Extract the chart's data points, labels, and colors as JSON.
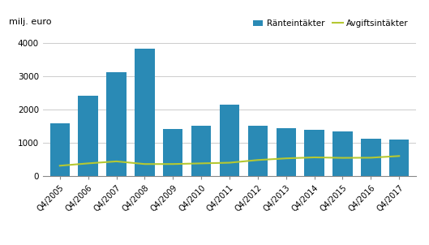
{
  "categories": [
    "Q4/2005",
    "Q4/2006",
    "Q4/2007",
    "Q4/2008",
    "Q4/2009",
    "Q4/2010",
    "Q4/2011",
    "Q4/2012",
    "Q4/2013",
    "Q4/2014",
    "Q4/2015",
    "Q4/2016",
    "Q4/2017"
  ],
  "ranteintakter": [
    1600,
    2420,
    3130,
    3830,
    1430,
    1510,
    2150,
    1520,
    1440,
    1390,
    1350,
    1120,
    1110
  ],
  "avgiftsintakter": [
    320,
    390,
    450,
    370,
    370,
    390,
    410,
    490,
    540,
    570,
    555,
    560,
    610
  ],
  "bar_color": "#2a8ab5",
  "line_color": "#b5c832",
  "ylabel": "milj. euro",
  "ylim": [
    0,
    4400
  ],
  "yticks": [
    0,
    1000,
    2000,
    3000,
    4000
  ],
  "legend_labels": [
    "Ränteintäkter",
    "Avgiftsintäkter"
  ],
  "background_color": "#ffffff",
  "grid_color": "#cccccc"
}
